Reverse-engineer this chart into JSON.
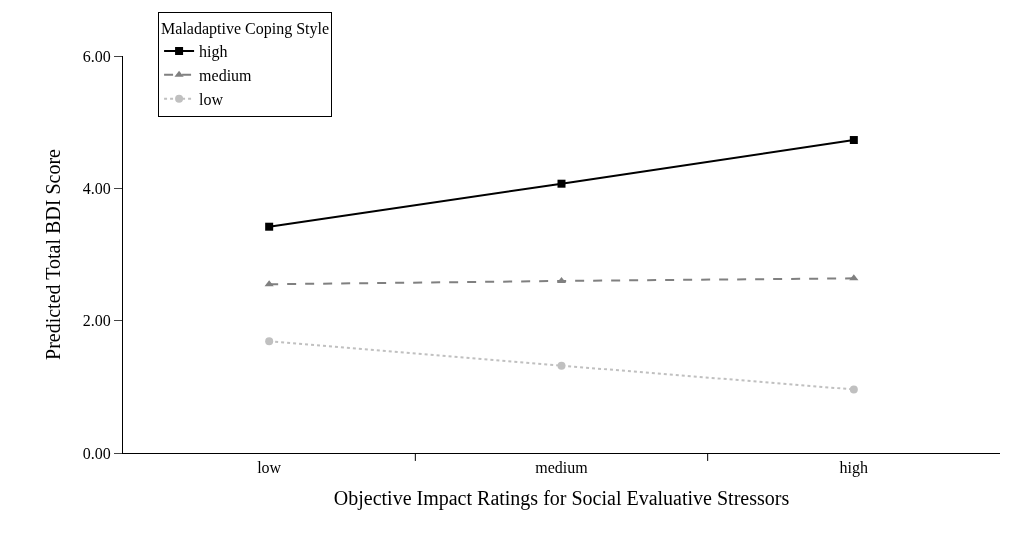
{
  "chart_data": {
    "type": "line",
    "xlabel": "Objective Impact Ratings for Social Evaluative Stressors",
    "ylabel": "Predicted Total BDI Score",
    "legend_title": "Maladaptive Coping Style",
    "categories": [
      "low",
      "medium",
      "high"
    ],
    "series": [
      {
        "name": "high",
        "color": "#000000",
        "values": [
          3.42,
          4.07,
          4.73
        ],
        "marker": "square",
        "line_style": "solid"
      },
      {
        "name": "medium",
        "color": "#808080",
        "values": [
          2.55,
          2.6,
          2.64
        ],
        "marker": "triangle",
        "line_style": "dashed"
      },
      {
        "name": "low",
        "color": "#c0c0c0",
        "values": [
          1.69,
          1.32,
          0.96
        ],
        "marker": "circle",
        "line_style": "dotted"
      }
    ],
    "ylim": [
      0,
      6
    ],
    "yticks": [
      {
        "value": 0,
        "label": "0.00"
      },
      {
        "value": 2,
        "label": "2.00"
      },
      {
        "value": 4,
        "label": "4.00"
      },
      {
        "value": 6,
        "label": "6.00"
      }
    ],
    "grid": false,
    "legend": "top left"
  }
}
